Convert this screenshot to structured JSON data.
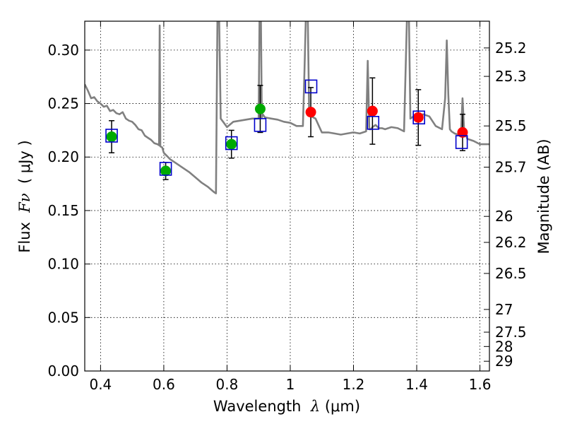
{
  "chart_data": {
    "type": "scatter",
    "xlabel": {
      "prefix": "Wavelength  ",
      "symbol": "λ",
      "units": " (μm)"
    },
    "ylabel": {
      "prefix": "Flux  ",
      "symbol": "Fν",
      "units": "  ( μJy )"
    },
    "ylabel_right": "Magnitude (AB)",
    "xlim": [
      0.35,
      1.63
    ],
    "ylim": [
      0.0,
      0.327
    ],
    "xticks": [
      0.4,
      0.6,
      0.8,
      1.0,
      1.2,
      1.4,
      1.6
    ],
    "xtick_labels": [
      "0.4",
      "0.6",
      "0.8",
      "1",
      "1.2",
      "1.4",
      "1.6"
    ],
    "yticks": [
      0.0,
      0.05,
      0.1,
      0.15,
      0.2,
      0.25,
      0.3
    ],
    "ytick_labels": [
      "0.00",
      "0.05",
      "0.10",
      "0.15",
      "0.20",
      "0.25",
      "0.30"
    ],
    "right_ticks": [
      {
        "label": "25.2",
        "value": 25.2
      },
      {
        "label": "25.3",
        "value": 25.3
      },
      {
        "label": "25.5",
        "value": 25.5
      },
      {
        "label": "25.7",
        "value": 25.7
      },
      {
        "label": "26",
        "value": 26.0
      },
      {
        "label": "26.2",
        "value": 26.2
      },
      {
        "label": "26.5",
        "value": 26.5
      },
      {
        "label": "27",
        "value": 27.0
      },
      {
        "label": "27.5",
        "value": 27.5
      },
      {
        "label": "28",
        "value": 28.0
      },
      {
        "label": "29",
        "value": 29.0
      }
    ],
    "grid": true,
    "colors": {
      "model": "#808080",
      "observed_optical": "#00aa00",
      "observed_nir": "#ff0000",
      "model_bands": "#0000cc",
      "errorbar": "#000000"
    },
    "model_spectrum": {
      "x": [
        0.35,
        0.36,
        0.37,
        0.38,
        0.39,
        0.4,
        0.41,
        0.42,
        0.43,
        0.44,
        0.45,
        0.46,
        0.47,
        0.48,
        0.49,
        0.5,
        0.51,
        0.52,
        0.53,
        0.54,
        0.55,
        0.56,
        0.57,
        0.58,
        0.585,
        0.587,
        0.589,
        0.595,
        0.6,
        0.62,
        0.64,
        0.66,
        0.68,
        0.7,
        0.72,
        0.74,
        0.76,
        0.765,
        0.77,
        0.775,
        0.78,
        0.79,
        0.8,
        0.82,
        0.84,
        0.86,
        0.88,
        0.9,
        0.903,
        0.907,
        0.91,
        0.913,
        0.92,
        0.94,
        0.96,
        0.98,
        1.0,
        1.02,
        1.04,
        1.045,
        1.05,
        1.055,
        1.06,
        1.08,
        1.1,
        1.12,
        1.14,
        1.16,
        1.18,
        1.2,
        1.22,
        1.24,
        1.245,
        1.25,
        1.255,
        1.26,
        1.27,
        1.28,
        1.29,
        1.3,
        1.32,
        1.34,
        1.36,
        1.37,
        1.375,
        1.38,
        1.39,
        1.4,
        1.42,
        1.44,
        1.46,
        1.48,
        1.49,
        1.495,
        1.5,
        1.505,
        1.51,
        1.52,
        1.53,
        1.54,
        1.545,
        1.55,
        1.56,
        1.58,
        1.6,
        1.63
      ],
      "y": [
        0.268,
        0.262,
        0.255,
        0.256,
        0.252,
        0.25,
        0.247,
        0.248,
        0.243,
        0.244,
        0.241,
        0.24,
        0.242,
        0.236,
        0.234,
        0.233,
        0.23,
        0.226,
        0.225,
        0.22,
        0.218,
        0.216,
        0.213,
        0.212,
        0.211,
        0.323,
        0.21,
        0.209,
        0.204,
        0.198,
        0.194,
        0.19,
        0.186,
        0.181,
        0.176,
        0.172,
        0.167,
        0.166,
        0.34,
        0.33,
        0.236,
        0.232,
        0.228,
        0.233,
        0.234,
        0.235,
        0.236,
        0.236,
        0.34,
        0.34,
        0.237,
        0.24,
        0.237,
        0.236,
        0.235,
        0.233,
        0.232,
        0.229,
        0.229,
        0.28,
        0.34,
        0.34,
        0.239,
        0.236,
        0.223,
        0.223,
        0.222,
        0.221,
        0.222,
        0.223,
        0.222,
        0.224,
        0.29,
        0.226,
        0.226,
        0.228,
        0.23,
        0.227,
        0.227,
        0.226,
        0.228,
        0.227,
        0.224,
        0.34,
        0.34,
        0.236,
        0.238,
        0.237,
        0.24,
        0.238,
        0.229,
        0.226,
        0.255,
        0.309,
        0.258,
        0.226,
        0.224,
        0.222,
        0.221,
        0.221,
        0.255,
        0.225,
        0.217,
        0.215,
        0.212,
        0.212
      ]
    },
    "observed": [
      {
        "x": 0.435,
        "y": 0.219,
        "yerr": [
          0.015,
          0.015
        ],
        "color": "observed_optical"
      },
      {
        "x": 0.606,
        "y": 0.187,
        "yerr": [
          0.008,
          0.008
        ],
        "color": "observed_optical"
      },
      {
        "x": 0.814,
        "y": 0.212,
        "yerr": [
          0.013,
          0.013
        ],
        "color": "observed_optical"
      },
      {
        "x": 0.905,
        "y": 0.245,
        "yerr": [
          0.022,
          0.022
        ],
        "color": "observed_optical"
      },
      {
        "x": 1.065,
        "y": 0.242,
        "yerr": [
          0.023,
          0.023
        ],
        "color": "observed_nir"
      },
      {
        "x": 1.26,
        "y": 0.243,
        "yerr": [
          0.031,
          0.031
        ],
        "color": "observed_nir"
      },
      {
        "x": 1.405,
        "y": 0.237,
        "yerr": [
          0.026,
          0.026
        ],
        "color": "observed_nir"
      },
      {
        "x": 1.545,
        "y": 0.223,
        "yerr": [
          0.017,
          0.017
        ],
        "color": "observed_nir"
      }
    ],
    "model_bands": [
      {
        "x": 0.435,
        "y": 0.22
      },
      {
        "x": 0.606,
        "y": 0.189
      },
      {
        "x": 0.814,
        "y": 0.213
      },
      {
        "x": 0.905,
        "y": 0.23
      },
      {
        "x": 1.066,
        "y": 0.266
      },
      {
        "x": 1.262,
        "y": 0.232
      },
      {
        "x": 1.407,
        "y": 0.237
      },
      {
        "x": 1.542,
        "y": 0.214
      }
    ]
  }
}
